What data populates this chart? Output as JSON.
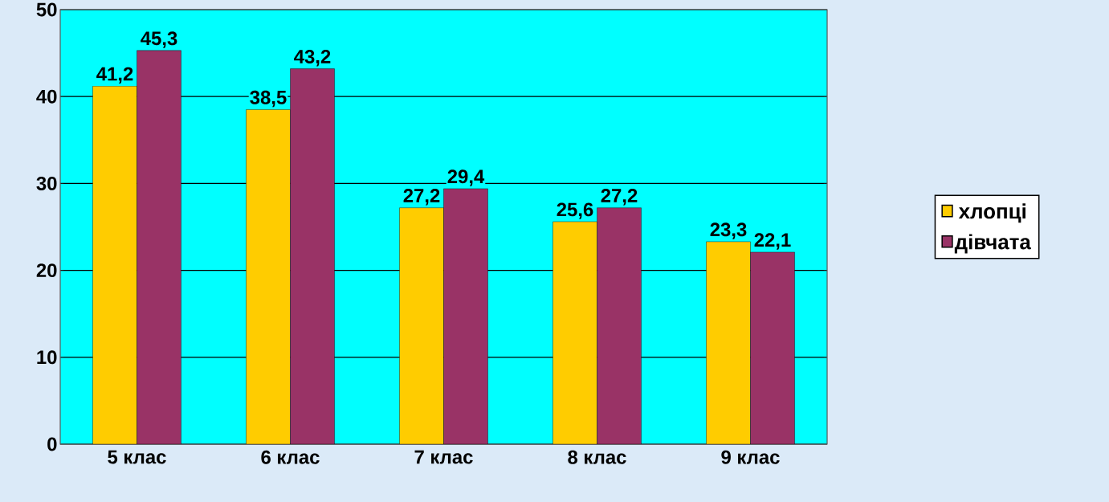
{
  "chart_data": {
    "type": "bar",
    "categories": [
      "5 клас",
      "6 клас",
      "7 клас",
      "8 клас",
      "9 клас"
    ],
    "series": [
      {
        "name": "хлопці",
        "color": "#ffcc00",
        "values": [
          41.2,
          38.5,
          27.2,
          25.6,
          23.3
        ],
        "value_labels": [
          "41,2",
          "38,5",
          "27,2",
          "25,6",
          "23,3"
        ]
      },
      {
        "name": "дівчата",
        "color": "#993366",
        "values": [
          45.3,
          43.2,
          29.4,
          27.2,
          22.1
        ],
        "value_labels": [
          "45,3",
          "43,2",
          "29,4",
          "27,2",
          "22,1"
        ]
      }
    ],
    "ylim": [
      0,
      50
    ],
    "yticks": [
      0,
      10,
      20,
      30,
      40,
      50
    ],
    "grid": "y",
    "legend": "right"
  }
}
